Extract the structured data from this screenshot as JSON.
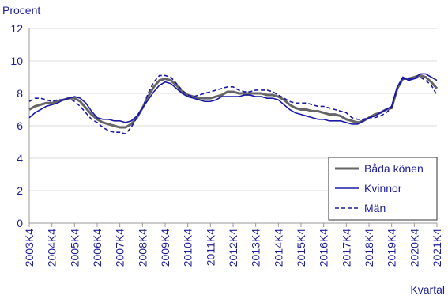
{
  "chart_data": {
    "type": "line",
    "y_label": "Procent",
    "x_label": "Kvartal",
    "categories": [
      "2003K4",
      null,
      null,
      null,
      "2004K4",
      null,
      null,
      null,
      "2005K4",
      null,
      null,
      null,
      "2006K4",
      null,
      null,
      null,
      "2007K4",
      null,
      null,
      null,
      "2008K4",
      null,
      null,
      null,
      "2009K4",
      null,
      null,
      null,
      "2010K4",
      null,
      null,
      null,
      "2011K4",
      null,
      null,
      null,
      "2012K4",
      null,
      null,
      null,
      "2013K4",
      null,
      null,
      null,
      "2014K4",
      null,
      null,
      null,
      "2015K4",
      null,
      null,
      null,
      "2016K4",
      null,
      null,
      null,
      "2017K4",
      null,
      null,
      null,
      "2018K4",
      null,
      null,
      null,
      "2019K4",
      null,
      null,
      null,
      "2020K4",
      null,
      null,
      null,
      "2021K4"
    ],
    "series": [
      {
        "name": "Båda könen",
        "color": "#666666",
        "line_style": "solid",
        "values": [
          7.0,
          7.2,
          7.3,
          7.4,
          7.4,
          7.5,
          7.6,
          7.7,
          7.7,
          7.5,
          7.1,
          6.7,
          6.4,
          6.2,
          6.1,
          6.0,
          5.9,
          5.9,
          6.1,
          6.5,
          7.1,
          7.8,
          8.4,
          8.8,
          8.9,
          8.8,
          8.5,
          8.1,
          7.9,
          7.8,
          7.7,
          7.7,
          7.7,
          7.8,
          7.9,
          8.1,
          8.1,
          8.0,
          8.0,
          8.0,
          8.0,
          8.0,
          7.9,
          7.9,
          7.8,
          7.6,
          7.3,
          7.1,
          7.0,
          7.0,
          6.9,
          6.9,
          6.8,
          6.7,
          6.7,
          6.6,
          6.4,
          6.3,
          6.2,
          6.3,
          6.5,
          6.7,
          6.8,
          7.0,
          7.1,
          8.3,
          8.9,
          8.9,
          9.0,
          9.1,
          9.0,
          8.7,
          8.3
        ]
      },
      {
        "name": "Kvinnor",
        "color": "#1a1aa6",
        "line_style": "solid",
        "values": [
          6.5,
          6.8,
          7.0,
          7.2,
          7.3,
          7.4,
          7.6,
          7.7,
          7.8,
          7.7,
          7.4,
          6.9,
          6.5,
          6.4,
          6.4,
          6.3,
          6.3,
          6.2,
          6.3,
          6.6,
          7.1,
          7.6,
          8.1,
          8.5,
          8.7,
          8.6,
          8.3,
          8.0,
          7.8,
          7.7,
          7.6,
          7.5,
          7.5,
          7.6,
          7.8,
          7.8,
          7.8,
          7.8,
          7.9,
          7.9,
          7.8,
          7.8,
          7.7,
          7.7,
          7.6,
          7.3,
          7.0,
          6.8,
          6.7,
          6.6,
          6.5,
          6.4,
          6.4,
          6.3,
          6.3,
          6.3,
          6.2,
          6.1,
          6.1,
          6.3,
          6.5,
          6.6,
          6.8,
          7.0,
          7.2,
          8.4,
          9.0,
          8.8,
          8.9,
          9.2,
          9.2,
          9.0,
          8.8
        ]
      },
      {
        "name": "Män",
        "color": "#1a1aa6",
        "line_style": "dashed",
        "values": [
          7.5,
          7.7,
          7.7,
          7.6,
          7.5,
          7.6,
          7.6,
          7.7,
          7.5,
          7.2,
          6.8,
          6.4,
          6.2,
          5.9,
          5.7,
          5.6,
          5.6,
          5.5,
          5.9,
          6.5,
          7.1,
          8.0,
          8.7,
          9.1,
          9.1,
          9.0,
          8.6,
          8.2,
          7.9,
          7.8,
          7.9,
          8.0,
          8.1,
          8.2,
          8.3,
          8.4,
          8.4,
          8.2,
          8.1,
          8.1,
          8.2,
          8.2,
          8.2,
          8.1,
          7.9,
          7.7,
          7.5,
          7.4,
          7.4,
          7.4,
          7.3,
          7.2,
          7.2,
          7.1,
          7.0,
          6.9,
          6.8,
          6.5,
          6.4,
          6.4,
          6.5,
          6.5,
          6.6,
          6.8,
          7.1,
          8.3,
          8.9,
          8.9,
          8.9,
          9.0,
          8.8,
          8.5,
          7.9
        ]
      }
    ],
    "ylim": [
      0,
      12
    ],
    "yticks": [
      0,
      2,
      4,
      6,
      8,
      10,
      12
    ],
    "grid": true,
    "legend": "lower right"
  }
}
